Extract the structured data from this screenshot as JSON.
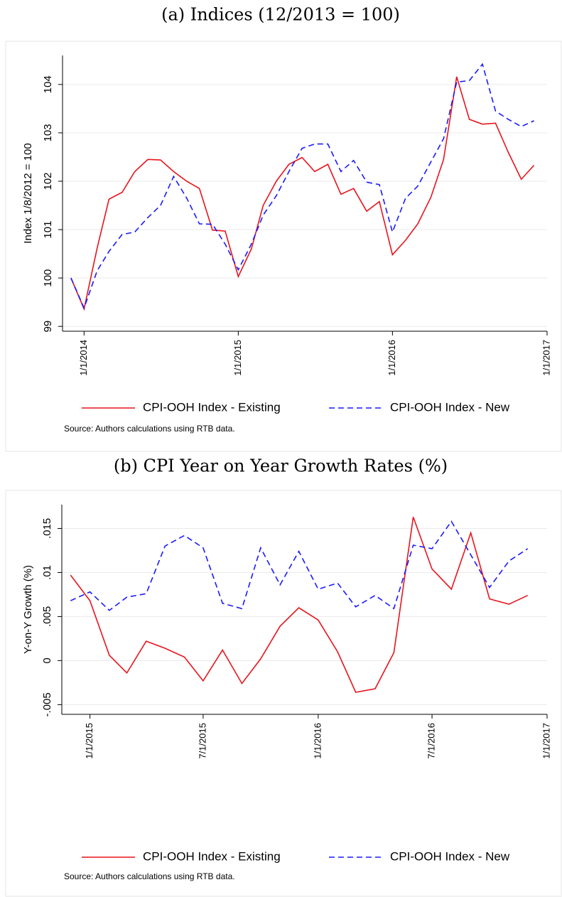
{
  "chart_data": [
    {
      "type": "line",
      "title": "(a) Indices (12/2013 = 100)",
      "ylabel": "Index 1/8/2012 = 100",
      "note": "Source: Authors calculations using RTB data.",
      "x": [
        "12/1/2013",
        "1/1/2014",
        "2/1/2014",
        "3/1/2014",
        "4/1/2014",
        "5/1/2014",
        "6/1/2014",
        "7/1/2014",
        "8/1/2014",
        "9/1/2014",
        "10/1/2014",
        "11/1/2014",
        "12/1/2014",
        "1/1/2015",
        "2/1/2015",
        "3/1/2015",
        "4/1/2015",
        "5/1/2015",
        "6/1/2015",
        "7/1/2015",
        "8/1/2015",
        "9/1/2015",
        "10/1/2015",
        "11/1/2015",
        "12/1/2015",
        "1/1/2016",
        "2/1/2016",
        "3/1/2016",
        "4/1/2016",
        "5/1/2016",
        "6/1/2016",
        "7/1/2016",
        "8/1/2016",
        "9/1/2016",
        "10/1/2016",
        "11/1/2016",
        "12/1/2016"
      ],
      "series": [
        {
          "name": "CPI-OOH Index - Existing",
          "color": "#e8141c",
          "style": "solid",
          "values": [
            100.0,
            99.36,
            100.62,
            101.63,
            101.77,
            102.2,
            102.45,
            102.44,
            102.2,
            102.0,
            101.85,
            100.99,
            100.97,
            100.03,
            100.6,
            101.5,
            102.0,
            102.35,
            102.49,
            102.2,
            102.35,
            101.73,
            101.85,
            101.38,
            101.58,
            100.48,
            100.78,
            101.12,
            101.67,
            102.45,
            104.16,
            103.28,
            103.18,
            103.2,
            102.6,
            102.04,
            102.33
          ]
        },
        {
          "name": "CPI-OOH Index - New",
          "color": "#1a1aff",
          "style": "dashed",
          "values": [
            100.0,
            99.38,
            100.15,
            100.55,
            100.9,
            100.95,
            101.25,
            101.5,
            102.1,
            101.65,
            101.12,
            101.11,
            100.7,
            100.17,
            100.7,
            101.3,
            101.7,
            102.2,
            102.68,
            102.77,
            102.77,
            102.2,
            102.43,
            101.98,
            101.93,
            100.95,
            101.65,
            101.9,
            102.4,
            102.88,
            104.05,
            104.08,
            104.42,
            103.45,
            103.28,
            103.13,
            103.25
          ]
        }
      ],
      "xlim": [
        "11/11/2013",
        "1/1/2017"
      ],
      "xticks": [
        "1/1/2014",
        "1/1/2015",
        "1/1/2016",
        "1/1/2017"
      ],
      "ylim": [
        98.9,
        104.6
      ],
      "yticks": [
        99,
        100,
        101,
        102,
        103,
        104
      ],
      "grid": true
    },
    {
      "type": "line",
      "title": "(b) CPI Year on Year Growth Rates (%)",
      "ylabel": "Y-on-Y Growth (%)",
      "note": "Source: Authors calculations using RTB data.",
      "x": [
        "12/1/2014",
        "1/1/2015",
        "2/1/2015",
        "3/1/2015",
        "4/1/2015",
        "5/1/2015",
        "6/1/2015",
        "7/1/2015",
        "8/1/2015",
        "9/1/2015",
        "10/1/2015",
        "11/1/2015",
        "12/1/2015",
        "1/1/2016",
        "2/1/2016",
        "3/1/2016",
        "4/1/2016",
        "5/1/2016",
        "6/1/2016",
        "7/1/2016",
        "8/1/2016",
        "9/1/2016",
        "10/1/2016",
        "11/1/2016",
        "12/1/2016"
      ],
      "series": [
        {
          "name": "CPI-OOH Index - Existing",
          "color": "#e8141c",
          "style": "solid",
          "values": [
            0.0097,
            0.0068,
            0.0006,
            -0.0014,
            0.0022,
            0.0014,
            0.0004,
            -0.0023,
            0.0012,
            -0.0026,
            0.0002,
            0.0039,
            0.006,
            0.0046,
            0.001,
            -0.0036,
            -0.0032,
            0.0009,
            0.0163,
            0.0104,
            0.0081,
            0.0145,
            0.007,
            0.0064,
            0.0074
          ]
        },
        {
          "name": "CPI-OOH Index - New",
          "color": "#1a1aff",
          "style": "dashed",
          "values": [
            0.0068,
            0.0078,
            0.0057,
            0.0072,
            0.0076,
            0.013,
            0.0142,
            0.0128,
            0.0065,
            0.0059,
            0.0128,
            0.0086,
            0.0124,
            0.0081,
            0.0088,
            0.0061,
            0.0074,
            0.0059,
            0.0131,
            0.0127,
            0.0158,
            0.012,
            0.0083,
            0.0113,
            0.0127
          ]
        }
      ],
      "xlim": [
        "11/17/2014",
        "1/1/2017"
      ],
      "xticks": [
        "1/1/2015",
        "7/1/2015",
        "1/1/2016",
        "7/1/2016",
        "1/1/2017"
      ],
      "ylim": [
        -0.0061,
        0.0177
      ],
      "yticks": [
        {
          "value": -0.005,
          "label": "-.005"
        },
        0,
        {
          "value": 0.005,
          "label": ".005"
        },
        {
          "value": 0.01,
          "label": ".01"
        },
        {
          "value": 0.015,
          "label": ".015"
        }
      ],
      "grid": true
    }
  ]
}
